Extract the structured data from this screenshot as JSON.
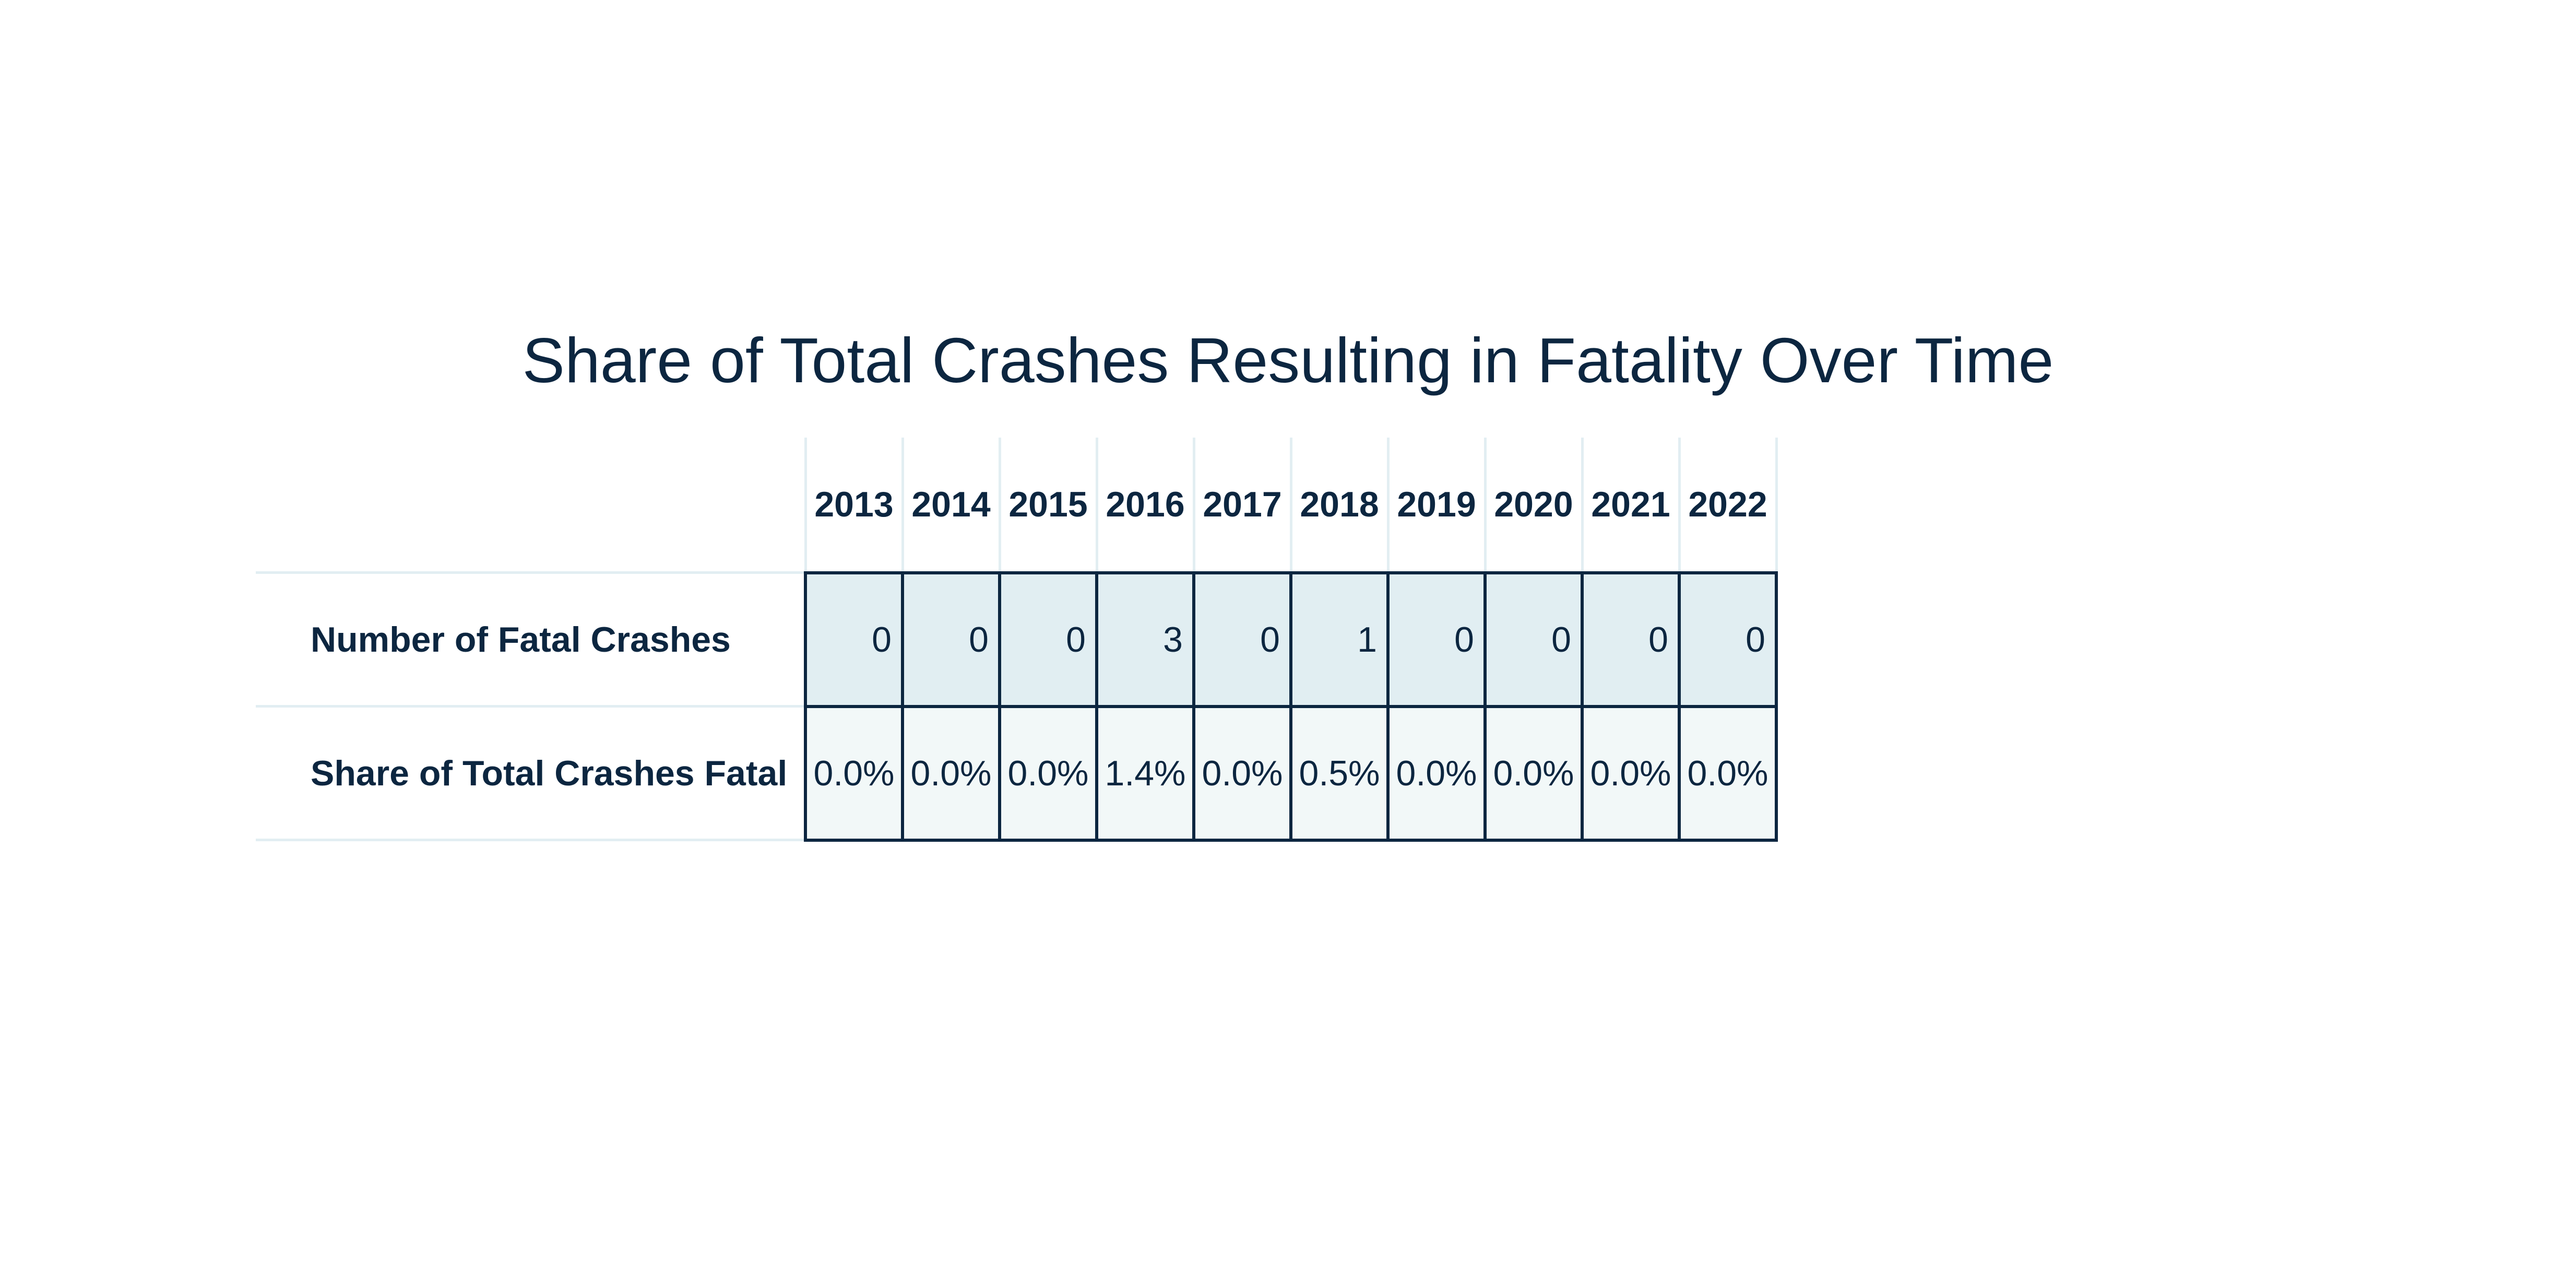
{
  "chart_data": {
    "type": "table",
    "title": "Share of Total Crashes Resulting in Fatality Over Time",
    "columns": [
      "2013",
      "2014",
      "2015",
      "2016",
      "2017",
      "2018",
      "2019",
      "2020",
      "2021",
      "2022"
    ],
    "rows": [
      {
        "label": "Number of Fatal Crashes",
        "values": [
          "0",
          "0",
          "0",
          "3",
          "0",
          "1",
          "0",
          "0",
          "0",
          "0"
        ]
      },
      {
        "label": "Share of Total Crashes Fatal",
        "values": [
          "0.0%",
          "0.0%",
          "0.0%",
          "1.4%",
          "0.0%",
          "0.5%",
          "0.0%",
          "0.0%",
          "0.0%",
          "0.0%"
        ]
      }
    ]
  },
  "colors": {
    "text": "#0c2640",
    "count_row_fill": "#e1eef2",
    "share_row_fill": "#f2f8f8",
    "cell_border": "#0c2640",
    "light_rule": "#e2eef2"
  }
}
